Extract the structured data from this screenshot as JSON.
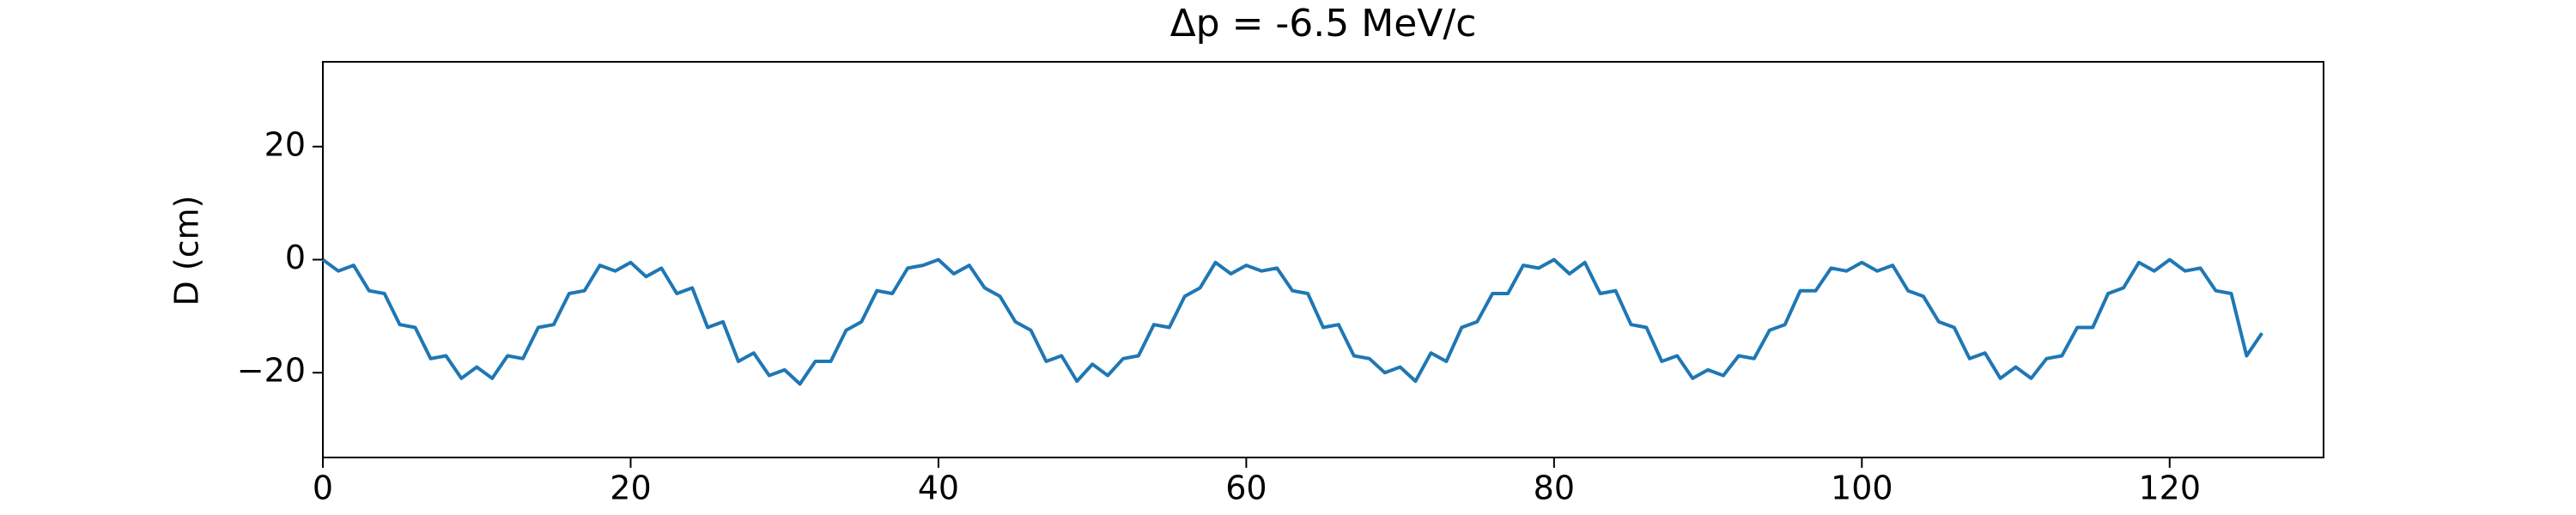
{
  "chart_data": {
    "type": "line",
    "title": "Δp = -6.5 MeV/c",
    "y_label": "D (cm)",
    "x": [
      0,
      1,
      2,
      3,
      4,
      5,
      6,
      7,
      8,
      9,
      10,
      11,
      12,
      13,
      14,
      15,
      16,
      17,
      18,
      19,
      20,
      21,
      22,
      23,
      24,
      25,
      26,
      27,
      28,
      29,
      30,
      31,
      32,
      33,
      34,
      35,
      36,
      37,
      38,
      39,
      40,
      41,
      42,
      43,
      44,
      45,
      46,
      47,
      48,
      49,
      50,
      51,
      52,
      53,
      54,
      55,
      56,
      57,
      58,
      59,
      60,
      61,
      62,
      63,
      64,
      65,
      66,
      67,
      68,
      69,
      70,
      71,
      72,
      73,
      74,
      75,
      76,
      77,
      78,
      79,
      80,
      81,
      82,
      83,
      84,
      85,
      86,
      87,
      88,
      89,
      90,
      91,
      92,
      93,
      94,
      95,
      96,
      97,
      98,
      99,
      100,
      101,
      102,
      103,
      104,
      105,
      106,
      107,
      108,
      109,
      110,
      111,
      112,
      113,
      114,
      115,
      116,
      117,
      118,
      119,
      120,
      121,
      122,
      123,
      124,
      125,
      126
    ],
    "values": [
      0,
      -2,
      -1,
      -5.5,
      -6,
      -11.5,
      -12,
      -17.5,
      -17,
      -21,
      -19,
      -21,
      -17,
      -17.5,
      -12,
      -11.5,
      -6,
      -5.5,
      -1,
      -2,
      -0.5,
      -3,
      -1.5,
      -6,
      -5,
      -12,
      -11,
      -18,
      -16.5,
      -20.5,
      -19.5,
      -22,
      -18,
      -18,
      -12.5,
      -11,
      -5.5,
      -6,
      -1.5,
      -1,
      0,
      -2.5,
      -1,
      -5,
      -6.5,
      -11,
      -12.5,
      -18,
      -17,
      -21.5,
      -18.5,
      -20.5,
      -17.5,
      -17,
      -11.5,
      -12,
      -6.5,
      -5,
      -0.5,
      -2.5,
      -1,
      -2,
      -1.5,
      -5.5,
      -6,
      -12,
      -11.5,
      -17,
      -17.5,
      -20,
      -19,
      -21.5,
      -16.5,
      -18,
      -12,
      -11,
      -6,
      -6,
      -1,
      -1.5,
      0,
      -2.5,
      -0.5,
      -6,
      -5.5,
      -11.5,
      -12,
      -18,
      -17,
      -21,
      -19.5,
      -20.5,
      -17,
      -17.5,
      -12.5,
      -11.5,
      -5.5,
      -5.5,
      -1.5,
      -2,
      -0.5,
      -2,
      -1,
      -5.5,
      -6.5,
      -11,
      -12,
      -17.5,
      -16.5,
      -21,
      -19,
      -21,
      -17.5,
      -17,
      -12,
      -12,
      -6,
      -5,
      -0.5,
      -2,
      0,
      -2,
      -1.5,
      -5.5,
      -6,
      -17,
      -13
    ],
    "color": "#1f77b4",
    "xlim": [
      0,
      130
    ],
    "xticks": [
      0,
      20,
      40,
      60,
      80,
      100,
      120
    ],
    "ylim": [
      -35,
      35
    ],
    "yticks": [
      {
        "value": -20,
        "label": "−20"
      },
      0,
      20
    ]
  }
}
